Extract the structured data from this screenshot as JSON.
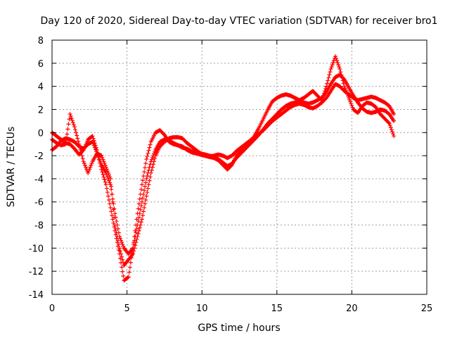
{
  "chart_data": {
    "type": "scatter",
    "title": "Day 120 of 2020, Sidereal Day-to-day VTEC variation (SDTVAR) for receiver bro1",
    "xlabel": "GPS time / hours",
    "ylabel": "SDTVAR / TECUs",
    "xlim": [
      0,
      25
    ],
    "ylim": [
      -14,
      8
    ],
    "xticks": [
      0,
      5,
      10,
      15,
      20,
      25
    ],
    "yticks": [
      -14,
      -12,
      -10,
      -8,
      -6,
      -4,
      -2,
      0,
      2,
      4,
      6,
      8
    ],
    "grid": true,
    "marker": "+",
    "marker_color": "#ff0000",
    "series": [
      {
        "x": [
          0.0,
          0.3,
          0.6,
          0.9,
          1.2,
          1.5,
          1.8,
          2.1,
          2.4,
          2.7,
          3.0,
          3.3,
          3.6,
          3.9,
          4.2,
          4.5,
          4.8,
          5.1,
          5.4,
          5.7,
          6.0,
          6.3,
          6.6,
          6.9,
          7.2,
          7.5,
          7.8,
          8.1,
          8.4,
          8.7,
          9.0,
          9.3,
          9.6,
          9.9,
          10.2,
          10.5,
          10.8,
          11.1,
          11.4,
          11.7,
          12.0,
          12.3,
          12.6,
          12.9,
          13.2,
          13.5,
          13.8,
          14.1,
          14.4,
          14.7,
          15.0,
          15.3,
          15.6,
          15.9,
          16.2,
          16.5,
          16.8,
          17.1,
          17.4,
          17.7,
          18.0,
          18.3,
          18.6,
          18.9,
          19.2,
          19.5,
          19.8,
          20.1,
          20.4,
          20.7,
          21.0,
          21.3,
          21.6,
          21.9,
          22.2,
          22.5,
          22.8
        ],
        "y": [
          0.0,
          -0.3,
          -0.6,
          -0.9,
          -1.0,
          -1.4,
          -1.9,
          -1.5,
          -0.6,
          -0.3,
          -1.5,
          -3.2,
          -4.5,
          -6.5,
          -8.5,
          -10.5,
          -12.8,
          -12.5,
          -10.0,
          -7.0,
          -4.5,
          -2.3,
          -0.8,
          0.0,
          0.2,
          -0.2,
          -0.8,
          -1.0,
          -1.1,
          -1.2,
          -1.5,
          -1.7,
          -1.8,
          -1.9,
          -2.0,
          -2.1,
          -2.2,
          -2.4,
          -2.8,
          -3.2,
          -2.8,
          -2.0,
          -1.6,
          -1.2,
          -0.8,
          -0.3,
          0.4,
          1.2,
          2.0,
          2.7,
          3.0,
          3.2,
          3.3,
          3.2,
          3.0,
          2.8,
          3.0,
          3.3,
          3.6,
          3.2,
          2.8,
          4.0,
          5.5,
          6.6,
          5.5,
          4.0,
          3.0,
          2.0,
          1.7,
          2.3,
          2.6,
          2.5,
          2.2,
          1.6,
          1.2,
          0.8,
          -0.3
        ]
      },
      {
        "x": [
          0.0,
          0.3,
          0.6,
          0.9,
          1.2,
          1.5,
          1.8,
          2.1,
          2.4,
          2.7,
          3.0,
          3.3,
          3.6,
          3.9,
          4.2,
          4.5,
          4.8,
          5.1,
          5.4,
          5.7,
          6.0,
          6.3,
          6.6,
          6.9,
          7.2,
          7.5,
          7.8,
          8.1,
          8.4,
          8.7,
          9.0,
          9.3,
          9.6,
          9.9,
          10.2,
          10.5,
          10.8,
          11.1,
          11.4,
          11.7,
          12.0,
          12.3,
          12.6,
          12.9,
          13.2,
          13.5,
          13.8,
          14.1,
          14.4,
          14.7,
          15.0,
          15.3,
          15.6,
          15.9,
          16.2,
          16.5,
          16.8,
          17.1,
          17.4,
          17.7,
          18.0,
          18.3,
          18.6,
          18.9,
          19.2,
          19.5,
          19.8,
          20.1,
          20.4,
          20.7,
          21.0,
          21.3,
          21.6,
          21.9,
          22.2,
          22.5,
          22.8
        ],
        "y": [
          -1.5,
          -1.2,
          -0.7,
          -0.5,
          -0.6,
          -0.8,
          -1.2,
          -1.4,
          -1.0,
          -0.8,
          -1.8,
          -2.8,
          -3.5,
          -4.5,
          -7.0,
          -9.0,
          -10.0,
          -10.5,
          -10.0,
          -8.0,
          -6.0,
          -4.0,
          -2.5,
          -1.5,
          -0.8,
          -0.6,
          -0.7,
          -0.9,
          -1.1,
          -1.3,
          -1.4,
          -1.6,
          -1.7,
          -1.8,
          -1.9,
          -2.0,
          -2.1,
          -2.3,
          -2.6,
          -2.9,
          -2.7,
          -2.2,
          -1.8,
          -1.4,
          -1.0,
          -0.6,
          -0.2,
          0.3,
          0.8,
          1.2,
          1.6,
          2.0,
          2.3,
          2.5,
          2.6,
          2.7,
          2.6,
          2.5,
          2.6,
          2.8,
          3.0,
          3.5,
          4.2,
          4.8,
          5.0,
          4.6,
          3.9,
          3.2,
          2.6,
          2.1,
          1.8,
          1.7,
          1.8,
          2.0,
          1.9,
          1.6,
          1.0
        ]
      },
      {
        "x": [
          0.0,
          0.3,
          0.6,
          0.9,
          1.2,
          1.5,
          1.8,
          2.1,
          2.4,
          2.7,
          3.0,
          3.3,
          3.6,
          3.9,
          4.2,
          4.5,
          4.8,
          5.1,
          5.4,
          5.7,
          6.0,
          6.3,
          6.6,
          6.9,
          7.2,
          7.5,
          7.8,
          8.1,
          8.4,
          8.7,
          9.0,
          9.3,
          9.6,
          9.9,
          10.2,
          10.5,
          10.8,
          11.1,
          11.4,
          11.7,
          12.0,
          12.3,
          12.6,
          12.9,
          13.2,
          13.5,
          13.8,
          14.1,
          14.4,
          14.7,
          15.0,
          15.3,
          15.6,
          15.9,
          16.2,
          16.5,
          16.8,
          17.1,
          17.4,
          17.7,
          18.0,
          18.3,
          18.6,
          18.9,
          19.2,
          19.5,
          19.8,
          20.1,
          20.4,
          20.7,
          21.0,
          21.3,
          21.6,
          21.9,
          22.2,
          22.5,
          22.8
        ],
        "y": [
          -0.6,
          -0.9,
          -1.1,
          -1.0,
          1.6,
          0.5,
          -1.0,
          -2.5,
          -3.5,
          -2.5,
          -1.8,
          -2.0,
          -3.0,
          -4.0,
          -8.0,
          -10.0,
          -11.5,
          -11.0,
          -10.5,
          -9.0,
          -7.5,
          -5.5,
          -3.5,
          -2.0,
          -1.2,
          -0.8,
          -0.5,
          -0.4,
          -0.4,
          -0.5,
          -0.9,
          -1.2,
          -1.5,
          -1.8,
          -2.0,
          -2.1,
          -2.0,
          -1.9,
          -2.0,
          -2.2,
          -2.0,
          -1.6,
          -1.3,
          -1.0,
          -0.7,
          -0.4,
          -0.1,
          0.2,
          0.6,
          1.0,
          1.3,
          1.6,
          1.9,
          2.2,
          2.4,
          2.5,
          2.4,
          2.2,
          2.1,
          2.3,
          2.6,
          3.0,
          3.6,
          4.2,
          4.0,
          3.6,
          3.3,
          3.0,
          2.8,
          2.9,
          3.0,
          3.1,
          3.0,
          2.8,
          2.6,
          2.3,
          1.6
        ]
      }
    ]
  }
}
